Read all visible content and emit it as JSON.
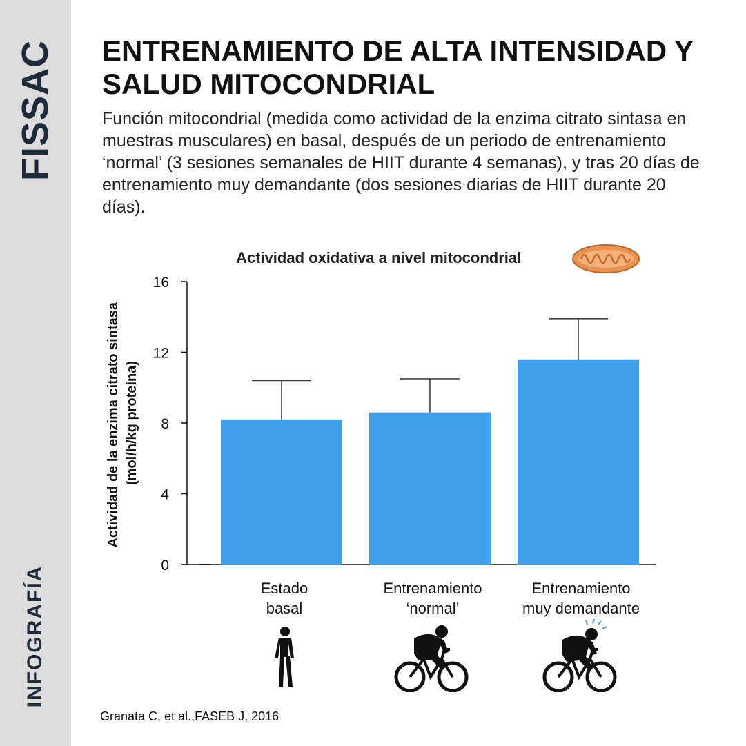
{
  "sidebar": {
    "brand": "FISSAC",
    "section": "INFOGRAFÍA"
  },
  "title": "ENTRENAMIENTO DE ALTA INTENSIDAD Y SALUD MITOCONDRIAL",
  "subtitle": "Función mitocondrial (medida como actividad de la enzima citrato sintasa en muestras musculares) en basal, después de un periodo de entrenamiento  ‘normal’  (3 sesiones semanales de HIIT durante 4 semanas), y tras 20 días de entrenamiento muy demandante (dos sesiones diarias de HIIT durante 20 días).",
  "source": "Granata C, et al.,FASEB J, 2016",
  "icons": [
    "mitochondrion-icon",
    "walking-person-icon",
    "cyclist-icon",
    "cyclist-tired-icon"
  ],
  "chart_data": {
    "type": "bar",
    "title": "Actividad oxidativa a nivel mitocondrial",
    "ylabel_line1": "Actividad de la enzima citrato sintasa",
    "ylabel_line2": "(mol/h/kg proteína)",
    "categories_lines": [
      [
        "Estado",
        "basal"
      ],
      [
        "Entrenamiento",
        "‘normal’"
      ],
      [
        "Entrenamiento",
        "muy demandante"
      ]
    ],
    "values": [
      8.2,
      8.6,
      11.6
    ],
    "error_upper": [
      10.4,
      10.5,
      13.9
    ],
    "ylim": [
      0,
      16
    ],
    "yticks": [
      0,
      4,
      8,
      12,
      16
    ],
    "ytick_labels": [
      "0",
      "4",
      "8",
      "12",
      "16"
    ],
    "bar_color": "#3fa1ec",
    "grid": false,
    "legend": "none"
  }
}
